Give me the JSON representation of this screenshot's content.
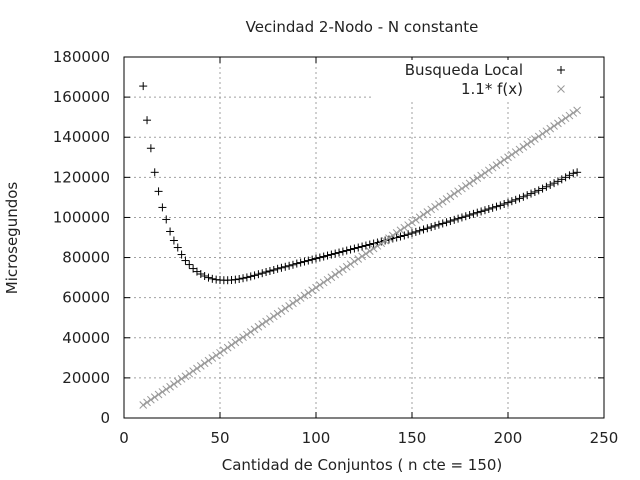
{
  "chart_data": {
    "type": "scatter",
    "title": "Vecindad 2-Nodo - N constante",
    "xlabel": "Cantidad de Conjuntos ( n cte = 150)",
    "ylabel": "Microsegundos",
    "xlim": [
      0,
      250
    ],
    "ylim": [
      0,
      180000
    ],
    "x_ticks": [
      "0",
      "50",
      "100",
      "150",
      "200",
      "250"
    ],
    "y_ticks": [
      "0",
      "20000",
      "40000",
      "60000",
      "80000",
      "100000",
      "120000",
      "140000",
      "160000",
      "180000"
    ],
    "grid": true,
    "legend_position": "top-right",
    "series": [
      {
        "name": "Busqueda Local",
        "marker": "plus",
        "color": "#000000",
        "points": [
          [
            10,
            165500
          ],
          [
            12,
            148500
          ],
          [
            14,
            134500
          ],
          [
            16,
            122500
          ],
          [
            18,
            113000
          ],
          [
            20,
            105000
          ],
          [
            22,
            99000
          ],
          [
            24,
            93000
          ],
          [
            26,
            88500
          ],
          [
            28,
            85000
          ],
          [
            30,
            81500
          ],
          [
            32,
            78500
          ],
          [
            34,
            76500
          ],
          [
            36,
            74500
          ],
          [
            38,
            73000
          ],
          [
            40,
            71800
          ],
          [
            42,
            70800
          ],
          [
            44,
            70000
          ],
          [
            46,
            69400
          ],
          [
            48,
            69000
          ],
          [
            50,
            68800
          ],
          [
            52,
            68700
          ],
          [
            54,
            68700
          ],
          [
            56,
            68800
          ],
          [
            58,
            69000
          ],
          [
            60,
            69300
          ],
          [
            62,
            69700
          ],
          [
            64,
            70100
          ],
          [
            66,
            70600
          ],
          [
            68,
            71100
          ],
          [
            70,
            71700
          ],
          [
            72,
            72200
          ],
          [
            74,
            72800
          ],
          [
            76,
            73300
          ],
          [
            78,
            73800
          ],
          [
            80,
            74400
          ],
          [
            82,
            74900
          ],
          [
            84,
            75400
          ],
          [
            86,
            75900
          ],
          [
            88,
            76400
          ],
          [
            90,
            77000
          ],
          [
            92,
            77500
          ],
          [
            94,
            78000
          ],
          [
            96,
            78500
          ],
          [
            98,
            79000
          ],
          [
            100,
            79500
          ],
          [
            102,
            80000
          ],
          [
            104,
            80500
          ],
          [
            106,
            81000
          ],
          [
            108,
            81500
          ],
          [
            110,
            82000
          ],
          [
            112,
            82500
          ],
          [
            114,
            83000
          ],
          [
            116,
            83500
          ],
          [
            118,
            84000
          ],
          [
            120,
            84500
          ],
          [
            122,
            85000
          ],
          [
            124,
            85500
          ],
          [
            126,
            86000
          ],
          [
            128,
            86500
          ],
          [
            130,
            87000
          ],
          [
            132,
            87500
          ],
          [
            134,
            88000
          ],
          [
            136,
            88500
          ],
          [
            138,
            89000
          ],
          [
            140,
            89500
          ],
          [
            142,
            90000
          ],
          [
            144,
            90500
          ],
          [
            146,
            91000
          ],
          [
            148,
            91600
          ],
          [
            150,
            92200
          ],
          [
            152,
            92800
          ],
          [
            154,
            93400
          ],
          [
            156,
            94000
          ],
          [
            158,
            94600
          ],
          [
            160,
            95200
          ],
          [
            162,
            95800
          ],
          [
            164,
            96400
          ],
          [
            166,
            97000
          ],
          [
            168,
            97600
          ],
          [
            170,
            98200
          ],
          [
            172,
            98800
          ],
          [
            174,
            99400
          ],
          [
            176,
            100000
          ],
          [
            178,
            100600
          ],
          [
            180,
            101200
          ],
          [
            182,
            101800
          ],
          [
            184,
            102400
          ],
          [
            186,
            103000
          ],
          [
            188,
            103600
          ],
          [
            190,
            104200
          ],
          [
            192,
            104800
          ],
          [
            194,
            105400
          ],
          [
            196,
            106000
          ],
          [
            198,
            106700
          ],
          [
            200,
            107400
          ],
          [
            202,
            108100
          ],
          [
            204,
            108800
          ],
          [
            206,
            109500
          ],
          [
            208,
            110300
          ],
          [
            210,
            111100
          ],
          [
            212,
            111900
          ],
          [
            214,
            112700
          ],
          [
            216,
            113500
          ],
          [
            218,
            114400
          ],
          [
            220,
            115300
          ],
          [
            222,
            116200
          ],
          [
            224,
            117100
          ],
          [
            226,
            118000
          ],
          [
            228,
            119000
          ],
          [
            230,
            120000
          ],
          [
            232,
            121000
          ],
          [
            234,
            122000
          ],
          [
            236,
            122500
          ]
        ]
      },
      {
        "name": "1.1* f(x)",
        "marker": "cross",
        "color": "#999999",
        "points": [
          [
            10,
            6500
          ],
          [
            12,
            7800
          ],
          [
            14,
            9100
          ],
          [
            16,
            10400
          ],
          [
            18,
            11700
          ],
          [
            20,
            13000
          ],
          [
            22,
            14300
          ],
          [
            24,
            15600
          ],
          [
            26,
            16900
          ],
          [
            28,
            18200
          ],
          [
            30,
            19500
          ],
          [
            32,
            20800
          ],
          [
            34,
            22100
          ],
          [
            36,
            23400
          ],
          [
            38,
            24700
          ],
          [
            40,
            26000
          ],
          [
            42,
            27300
          ],
          [
            44,
            28600
          ],
          [
            46,
            29900
          ],
          [
            48,
            31200
          ],
          [
            50,
            32500
          ],
          [
            52,
            33800
          ],
          [
            54,
            35100
          ],
          [
            56,
            36400
          ],
          [
            58,
            37700
          ],
          [
            60,
            39000
          ],
          [
            62,
            40300
          ],
          [
            64,
            41600
          ],
          [
            66,
            42900
          ],
          [
            68,
            44200
          ],
          [
            70,
            45500
          ],
          [
            72,
            46800
          ],
          [
            74,
            48100
          ],
          [
            76,
            49400
          ],
          [
            78,
            50700
          ],
          [
            80,
            52000
          ],
          [
            82,
            53300
          ],
          [
            84,
            54600
          ],
          [
            86,
            55900
          ],
          [
            88,
            57200
          ],
          [
            90,
            58500
          ],
          [
            92,
            59800
          ],
          [
            94,
            61100
          ],
          [
            96,
            62400
          ],
          [
            98,
            63700
          ],
          [
            100,
            65000
          ],
          [
            102,
            66300
          ],
          [
            104,
            67600
          ],
          [
            106,
            68900
          ],
          [
            108,
            70200
          ],
          [
            110,
            71500
          ],
          [
            112,
            72800
          ],
          [
            114,
            74100
          ],
          [
            116,
            75400
          ],
          [
            118,
            76700
          ],
          [
            120,
            78000
          ],
          [
            122,
            79300
          ],
          [
            124,
            80600
          ],
          [
            126,
            81900
          ],
          [
            128,
            83200
          ],
          [
            130,
            84500
          ],
          [
            132,
            85800
          ],
          [
            134,
            87100
          ],
          [
            136,
            88400
          ],
          [
            138,
            89700
          ],
          [
            140,
            91000
          ],
          [
            142,
            92300
          ],
          [
            144,
            93600
          ],
          [
            146,
            94900
          ],
          [
            148,
            96200
          ],
          [
            150,
            97500
          ],
          [
            152,
            98800
          ],
          [
            154,
            100100
          ],
          [
            156,
            101400
          ],
          [
            158,
            102700
          ],
          [
            160,
            104000
          ],
          [
            162,
            105300
          ],
          [
            164,
            106600
          ],
          [
            166,
            107900
          ],
          [
            168,
            109200
          ],
          [
            170,
            110500
          ],
          [
            172,
            111800
          ],
          [
            174,
            113100
          ],
          [
            176,
            114400
          ],
          [
            178,
            115700
          ],
          [
            180,
            117000
          ],
          [
            182,
            118300
          ],
          [
            184,
            119600
          ],
          [
            186,
            120900
          ],
          [
            188,
            122200
          ],
          [
            190,
            123500
          ],
          [
            192,
            124800
          ],
          [
            194,
            126100
          ],
          [
            196,
            127400
          ],
          [
            198,
            128700
          ],
          [
            200,
            130000
          ],
          [
            202,
            131300
          ],
          [
            204,
            132600
          ],
          [
            206,
            133900
          ],
          [
            208,
            135200
          ],
          [
            210,
            136500
          ],
          [
            212,
            137800
          ],
          [
            214,
            139100
          ],
          [
            216,
            140400
          ],
          [
            218,
            141700
          ],
          [
            220,
            143000
          ],
          [
            222,
            144300
          ],
          [
            224,
            145600
          ],
          [
            226,
            146900
          ],
          [
            228,
            148200
          ],
          [
            230,
            149500
          ],
          [
            232,
            150800
          ],
          [
            234,
            152100
          ],
          [
            236,
            153400
          ]
        ]
      }
    ]
  }
}
